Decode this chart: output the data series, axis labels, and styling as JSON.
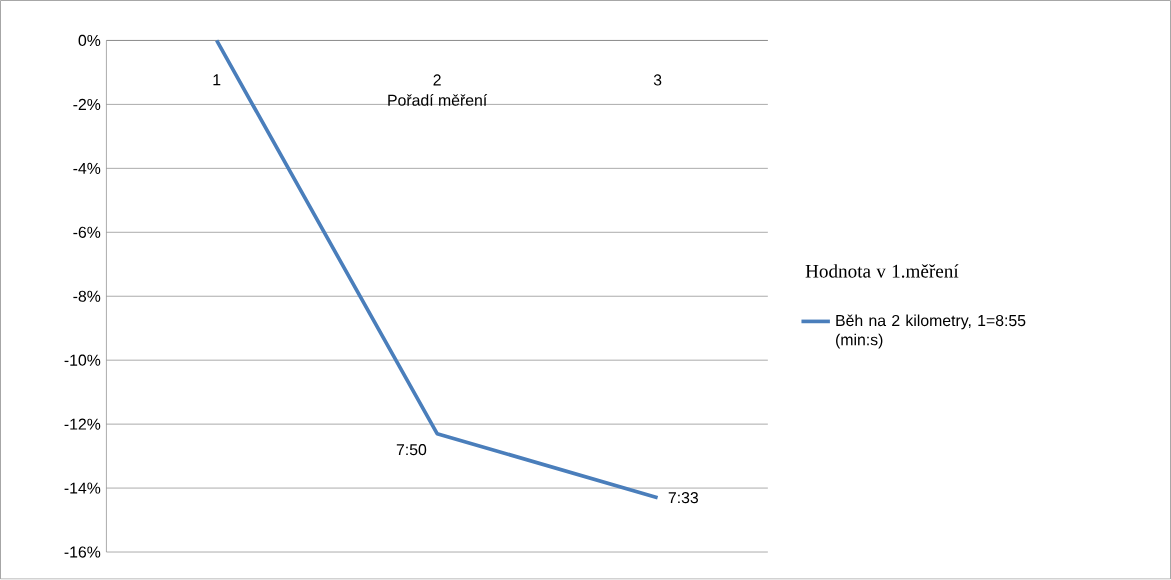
{
  "chart_data": {
    "type": "line",
    "legend_title": "Hodnota v 1.měření",
    "xlabel": "Pořadí měření",
    "categories": [
      "1",
      "2",
      "3"
    ],
    "series": [
      {
        "name": "Běh na 2 kilometry, 1=8:55 (min:s)",
        "color": "#4a7ebb",
        "values": [
          0,
          -12.3,
          -14.3
        ]
      }
    ],
    "annotations": [
      {
        "text": "7:50",
        "x": "2",
        "y": -12.3
      },
      {
        "text": "7:33",
        "x": "3",
        "y": -14.3
      }
    ],
    "ylim": [
      -16,
      0
    ],
    "yticks": [
      {
        "value": -16,
        "label": "-16%"
      },
      {
        "value": -14,
        "label": "-14%"
      },
      {
        "value": -12,
        "label": "-12%"
      },
      {
        "value": -10,
        "label": "-10%"
      },
      {
        "value": -8,
        "label": "-8%"
      },
      {
        "value": -6,
        "label": "-6%"
      },
      {
        "value": -4,
        "label": "-4%"
      },
      {
        "value": -2,
        "label": "-2%"
      },
      {
        "value": 0,
        "label": "0%"
      }
    ],
    "grid": "y",
    "legend": "right",
    "marker": "none",
    "line_style": "solid"
  }
}
